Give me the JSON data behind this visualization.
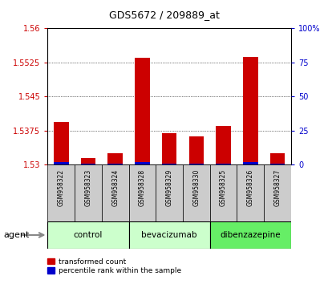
{
  "title": "GDS5672 / 209889_at",
  "samples": [
    "GSM958322",
    "GSM958323",
    "GSM958324",
    "GSM958328",
    "GSM958329",
    "GSM958330",
    "GSM958325",
    "GSM958326",
    "GSM958327"
  ],
  "transformed_counts": [
    1.5395,
    1.5315,
    1.5325,
    1.5535,
    1.537,
    1.5362,
    1.5385,
    1.5538,
    1.5325
  ],
  "percentile_ranks": [
    2,
    1,
    1,
    2,
    1,
    1,
    1,
    2,
    1
  ],
  "ylim_left": [
    1.53,
    1.56
  ],
  "ylim_right": [
    0,
    100
  ],
  "yticks_left": [
    1.53,
    1.5375,
    1.545,
    1.5525,
    1.56
  ],
  "yticks_right": [
    0,
    25,
    50,
    75,
    100
  ],
  "ytick_labels_left": [
    "1.53",
    "1.5375",
    "1.545",
    "1.5525",
    "1.56"
  ],
  "ytick_labels_right": [
    "0",
    "25",
    "50",
    "75",
    "100%"
  ],
  "group_boundaries": [
    [
      -0.5,
      2.5,
      "control",
      "#ccffcc"
    ],
    [
      2.5,
      5.5,
      "bevacizumab",
      "#ccffcc"
    ],
    [
      5.5,
      8.5,
      "dibenzazepine",
      "#66ee66"
    ]
  ],
  "bar_color_red": "#cc0000",
  "bar_color_blue": "#0000cc",
  "bg_color": "#ffffff",
  "tick_color_left": "#cc0000",
  "tick_color_right": "#0000cc",
  "agent_label": "agent",
  "legend_red": "transformed count",
  "legend_blue": "percentile rank within the sample",
  "sample_box_color": "#cccccc"
}
